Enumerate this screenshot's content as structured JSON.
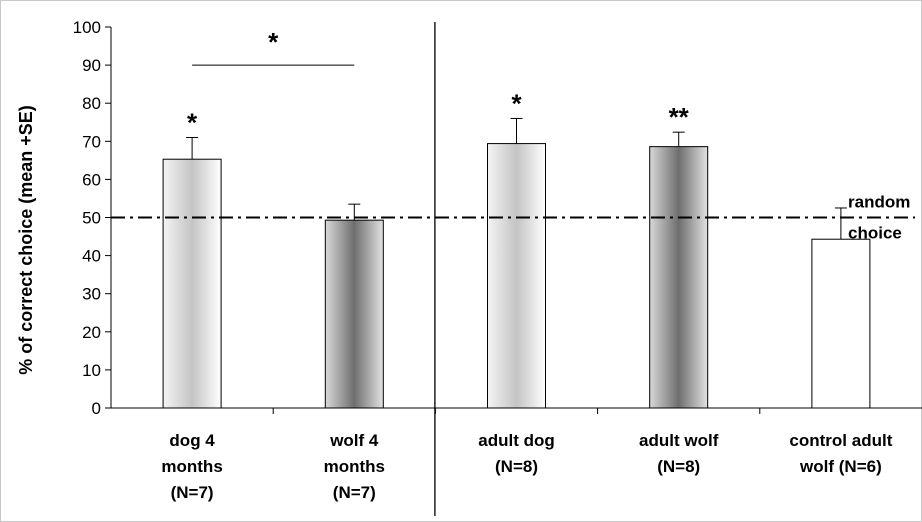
{
  "chart_data": {
    "type": "bar",
    "ylabel": "% of correct choice (mean +SE)",
    "xlabel": "",
    "ylim": [
      0,
      100
    ],
    "yticks": [
      0,
      10,
      20,
      30,
      40,
      50,
      60,
      70,
      80,
      90,
      100
    ],
    "grid": false,
    "categories": [
      [
        "dog 4",
        "months",
        "(N=7)"
      ],
      [
        "wolf 4",
        "months",
        "(N=7)"
      ],
      [
        "adult dog",
        "(N=8)"
      ],
      [
        "adult wolf",
        "(N=8)"
      ],
      [
        "control adult",
        "wolf (N=6)"
      ]
    ],
    "values": [
      65.3,
      49.3,
      69.4,
      68.6,
      44.3
    ],
    "errors": [
      5.7,
      4.2,
      6.6,
      3.8,
      8.2
    ],
    "significance": [
      "*",
      "",
      "*",
      "**",
      ""
    ],
    "bar_styles": [
      "light-gradient",
      "dark-gradient",
      "light-gradient",
      "dark-gradient",
      "white"
    ],
    "comparison": {
      "between": [
        0,
        1
      ],
      "label": "*"
    },
    "group_divider_after": 1,
    "reference_line": {
      "y": 50,
      "label": [
        "random",
        "choice"
      ],
      "style": "dash-dot"
    }
  }
}
